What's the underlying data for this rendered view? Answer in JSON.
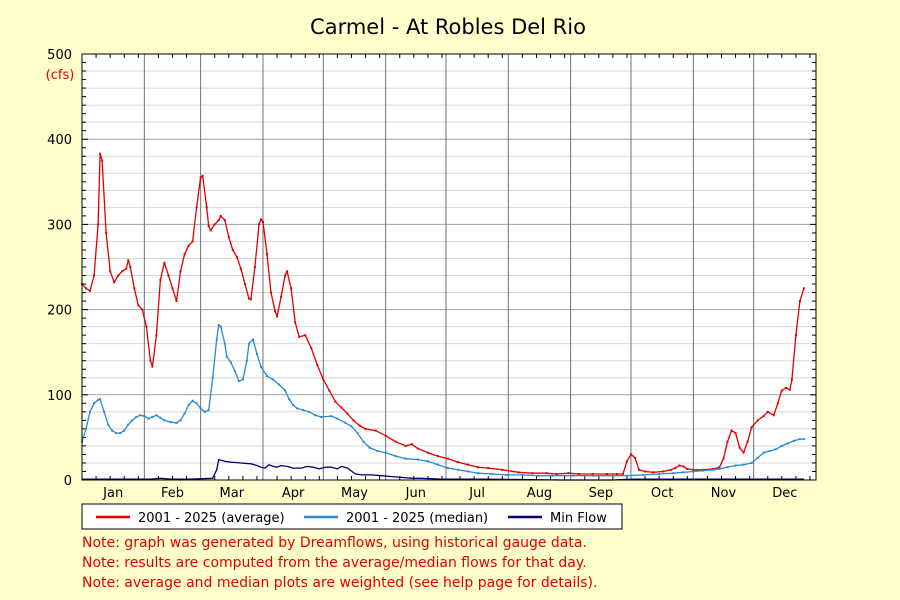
{
  "chart_data": {
    "type": "line",
    "title": "Carmel - At Robles Del Rio",
    "ylabel": "(cfs)",
    "ylim": [
      0,
      500
    ],
    "yticks": [
      0,
      100,
      200,
      300,
      400,
      500
    ],
    "xlim": [
      1,
      366
    ],
    "months": [
      "Jan",
      "Feb",
      "Mar",
      "Apr",
      "May",
      "Jun",
      "Jul",
      "Aug",
      "Sep",
      "Oct",
      "Nov",
      "Dec"
    ],
    "grid": true,
    "legend_position": "bottom",
    "series": [
      {
        "name": "2001 - 2025 (average)",
        "color": "#e00000",
        "markers": true,
        "points": [
          [
            1,
            230
          ],
          [
            3,
            225
          ],
          [
            5,
            222
          ],
          [
            7,
            240
          ],
          [
            9,
            300
          ],
          [
            10,
            383
          ],
          [
            11,
            375
          ],
          [
            13,
            290
          ],
          [
            15,
            245
          ],
          [
            17,
            232
          ],
          [
            19,
            240
          ],
          [
            21,
            245
          ],
          [
            23,
            248
          ],
          [
            24,
            258
          ],
          [
            25,
            250
          ],
          [
            27,
            225
          ],
          [
            29,
            205
          ],
          [
            31,
            200
          ],
          [
            33,
            180
          ],
          [
            35,
            140
          ],
          [
            36,
            133
          ],
          [
            38,
            170
          ],
          [
            40,
            235
          ],
          [
            42,
            255
          ],
          [
            44,
            240
          ],
          [
            46,
            225
          ],
          [
            48,
            210
          ],
          [
            50,
            245
          ],
          [
            52,
            265
          ],
          [
            54,
            275
          ],
          [
            56,
            280
          ],
          [
            58,
            320
          ],
          [
            60,
            355
          ],
          [
            61,
            357
          ],
          [
            63,
            320
          ],
          [
            64,
            298
          ],
          [
            65,
            293
          ],
          [
            67,
            300
          ],
          [
            69,
            305
          ],
          [
            70,
            310
          ],
          [
            72,
            305
          ],
          [
            74,
            285
          ],
          [
            76,
            270
          ],
          [
            78,
            262
          ],
          [
            80,
            248
          ],
          [
            82,
            230
          ],
          [
            84,
            213
          ],
          [
            85,
            212
          ],
          [
            87,
            250
          ],
          [
            89,
            300
          ],
          [
            90,
            306
          ],
          [
            91,
            303
          ],
          [
            93,
            265
          ],
          [
            95,
            220
          ],
          [
            97,
            198
          ],
          [
            98,
            192
          ],
          [
            100,
            215
          ],
          [
            102,
            240
          ],
          [
            103,
            245
          ],
          [
            105,
            225
          ],
          [
            107,
            185
          ],
          [
            109,
            168
          ],
          [
            112,
            170
          ],
          [
            115,
            155
          ],
          [
            118,
            135
          ],
          [
            121,
            118
          ],
          [
            124,
            105
          ],
          [
            127,
            92
          ],
          [
            130,
            85
          ],
          [
            133,
            78
          ],
          [
            136,
            70
          ],
          [
            139,
            64
          ],
          [
            142,
            60
          ],
          [
            147,
            58
          ],
          [
            152,
            52
          ],
          [
            157,
            45
          ],
          [
            162,
            40
          ],
          [
            165,
            42
          ],
          [
            168,
            37
          ],
          [
            173,
            32
          ],
          [
            178,
            28
          ],
          [
            183,
            25
          ],
          [
            188,
            21
          ],
          [
            193,
            18
          ],
          [
            198,
            15
          ],
          [
            203,
            14
          ],
          [
            210,
            12
          ],
          [
            218,
            9
          ],
          [
            225,
            8
          ],
          [
            232,
            8
          ],
          [
            237,
            7
          ],
          [
            243,
            8
          ],
          [
            248,
            7
          ],
          [
            255,
            7
          ],
          [
            262,
            7
          ],
          [
            267,
            7
          ],
          [
            270,
            7
          ],
          [
            272,
            22
          ],
          [
            274,
            30
          ],
          [
            276,
            26
          ],
          [
            278,
            12
          ],
          [
            281,
            10
          ],
          [
            285,
            9
          ],
          [
            290,
            10
          ],
          [
            294,
            12
          ],
          [
            296,
            14
          ],
          [
            298,
            17
          ],
          [
            300,
            16
          ],
          [
            302,
            13
          ],
          [
            305,
            12
          ],
          [
            310,
            12
          ],
          [
            315,
            13
          ],
          [
            318,
            15
          ],
          [
            320,
            25
          ],
          [
            322,
            45
          ],
          [
            324,
            58
          ],
          [
            326,
            55
          ],
          [
            328,
            38
          ],
          [
            330,
            32
          ],
          [
            332,
            45
          ],
          [
            334,
            62
          ],
          [
            337,
            70
          ],
          [
            340,
            75
          ],
          [
            342,
            80
          ],
          [
            345,
            76
          ],
          [
            347,
            90
          ],
          [
            349,
            105
          ],
          [
            351,
            108
          ],
          [
            353,
            106
          ],
          [
            354,
            118
          ],
          [
            356,
            170
          ],
          [
            358,
            210
          ],
          [
            360,
            225
          ]
        ]
      },
      {
        "name": "2001 - 2025 (median)",
        "color": "#2a8ad4",
        "markers": true,
        "points": [
          [
            1,
            45
          ],
          [
            3,
            60
          ],
          [
            5,
            80
          ],
          [
            7,
            90
          ],
          [
            9,
            94
          ],
          [
            10,
            95
          ],
          [
            12,
            80
          ],
          [
            14,
            65
          ],
          [
            16,
            58
          ],
          [
            18,
            55
          ],
          [
            20,
            55
          ],
          [
            22,
            58
          ],
          [
            24,
            65
          ],
          [
            26,
            70
          ],
          [
            28,
            74
          ],
          [
            30,
            76
          ],
          [
            32,
            75
          ],
          [
            34,
            72
          ],
          [
            36,
            74
          ],
          [
            38,
            76
          ],
          [
            40,
            73
          ],
          [
            42,
            70
          ],
          [
            45,
            68
          ],
          [
            48,
            67
          ],
          [
            50,
            70
          ],
          [
            52,
            78
          ],
          [
            54,
            88
          ],
          [
            56,
            93
          ],
          [
            58,
            90
          ],
          [
            60,
            84
          ],
          [
            62,
            80
          ],
          [
            64,
            82
          ],
          [
            66,
            120
          ],
          [
            68,
            165
          ],
          [
            69,
            182
          ],
          [
            70,
            180
          ],
          [
            72,
            160
          ],
          [
            73,
            145
          ],
          [
            75,
            138
          ],
          [
            77,
            128
          ],
          [
            79,
            116
          ],
          [
            81,
            118
          ],
          [
            83,
            140
          ],
          [
            84,
            160
          ],
          [
            86,
            165
          ],
          [
            88,
            148
          ],
          [
            90,
            133
          ],
          [
            93,
            122
          ],
          [
            96,
            118
          ],
          [
            99,
            112
          ],
          [
            102,
            105
          ],
          [
            104,
            95
          ],
          [
            106,
            88
          ],
          [
            108,
            84
          ],
          [
            111,
            82
          ],
          [
            114,
            80
          ],
          [
            117,
            76
          ],
          [
            120,
            74
          ],
          [
            125,
            75
          ],
          [
            128,
            72
          ],
          [
            132,
            67
          ],
          [
            135,
            63
          ],
          [
            138,
            55
          ],
          [
            141,
            45
          ],
          [
            144,
            38
          ],
          [
            148,
            34
          ],
          [
            152,
            32
          ],
          [
            157,
            28
          ],
          [
            162,
            25
          ],
          [
            168,
            24
          ],
          [
            173,
            22
          ],
          [
            178,
            18
          ],
          [
            183,
            14
          ],
          [
            188,
            12
          ],
          [
            193,
            10
          ],
          [
            198,
            8
          ],
          [
            205,
            7
          ],
          [
            212,
            6
          ],
          [
            220,
            6
          ],
          [
            228,
            5
          ],
          [
            235,
            5
          ],
          [
            245,
            5
          ],
          [
            255,
            5
          ],
          [
            265,
            5
          ],
          [
            272,
            5
          ],
          [
            280,
            6
          ],
          [
            288,
            7
          ],
          [
            295,
            8
          ],
          [
            300,
            9
          ],
          [
            305,
            10
          ],
          [
            310,
            11
          ],
          [
            315,
            12
          ],
          [
            318,
            13
          ],
          [
            322,
            15
          ],
          [
            326,
            17
          ],
          [
            330,
            18
          ],
          [
            334,
            20
          ],
          [
            337,
            26
          ],
          [
            340,
            32
          ],
          [
            343,
            34
          ],
          [
            346,
            36
          ],
          [
            349,
            40
          ],
          [
            352,
            43
          ],
          [
            355,
            46
          ],
          [
            358,
            48
          ],
          [
            360,
            48
          ]
        ]
      },
      {
        "name": "Min Flow",
        "color": "#00006e",
        "markers": false,
        "points": [
          [
            1,
            1
          ],
          [
            20,
            1
          ],
          [
            35,
            1
          ],
          [
            40,
            2
          ],
          [
            45,
            1
          ],
          [
            55,
            1
          ],
          [
            66,
            2
          ],
          [
            68,
            12
          ],
          [
            69,
            24
          ],
          [
            72,
            22
          ],
          [
            75,
            21
          ],
          [
            80,
            20
          ],
          [
            85,
            19
          ],
          [
            88,
            17
          ],
          [
            90,
            15
          ],
          [
            92,
            14
          ],
          [
            94,
            18
          ],
          [
            96,
            16
          ],
          [
            98,
            15
          ],
          [
            100,
            17
          ],
          [
            103,
            16
          ],
          [
            106,
            14
          ],
          [
            110,
            14
          ],
          [
            113,
            16
          ],
          [
            116,
            15
          ],
          [
            119,
            13
          ],
          [
            122,
            15
          ],
          [
            125,
            15
          ],
          [
            128,
            13
          ],
          [
            130,
            16
          ],
          [
            133,
            14
          ],
          [
            137,
            7
          ],
          [
            140,
            6
          ],
          [
            145,
            6
          ],
          [
            150,
            5
          ],
          [
            155,
            4
          ],
          [
            160,
            3
          ],
          [
            165,
            2
          ],
          [
            170,
            2
          ],
          [
            180,
            1
          ],
          [
            200,
            1
          ],
          [
            240,
            0
          ],
          [
            265,
            0
          ],
          [
            275,
            1
          ],
          [
            300,
            1
          ],
          [
            330,
            1
          ],
          [
            350,
            1
          ],
          [
            360,
            1
          ]
        ]
      }
    ],
    "notes": [
      "Note: graph was generated by Dreamflows, using historical gauge data.",
      "Note: results are computed from the average/median flows for that day.",
      "Note: average and median plots are weighted (see help page for details)."
    ]
  }
}
